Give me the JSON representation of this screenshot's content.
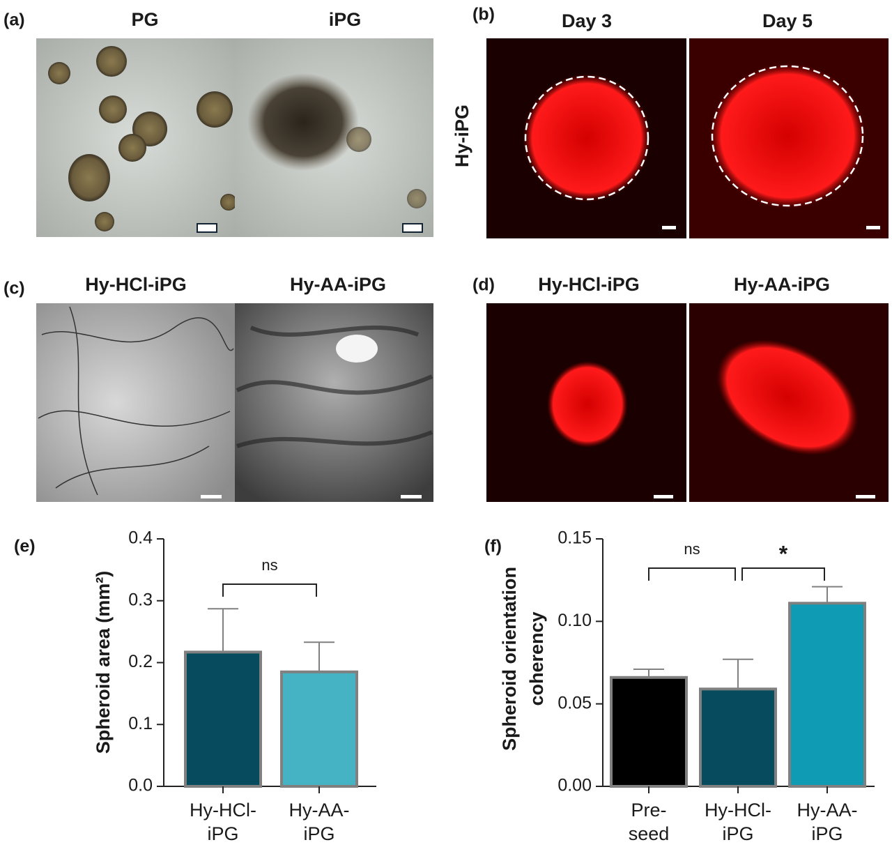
{
  "panels": [
    {
      "label": "(a)",
      "titles": [
        "PG",
        "iPG"
      ]
    },
    {
      "label": "(b)",
      "titles": [
        "Day 3",
        "Day 5"
      ],
      "row_label": "Hy-iPG"
    },
    {
      "label": "(c)",
      "titles": [
        "Hy-HCl-iPG",
        "Hy-AA-iPG"
      ]
    },
    {
      "label": "(d)",
      "titles": [
        "Hy-HCl-iPG",
        "Hy-AA-iPG"
      ]
    }
  ],
  "chart_data": [
    {
      "type": "bar",
      "label": "(e)",
      "ylabel": [
        "Spheroid area (mm²)"
      ],
      "categories": [
        "Hy-HCl-iPG",
        "Hy-AA-iPG"
      ],
      "values": [
        0.217,
        0.185
      ],
      "errors": [
        0.07,
        0.048
      ],
      "colors": [
        "#064b5e",
        "#45b3c4"
      ],
      "ylim": [
        0,
        0.4
      ],
      "yticks": [
        {
          "value": 0,
          "label": "0.0"
        },
        0.1,
        0.2,
        0.3,
        0.4
      ],
      "annotations": [
        "ns"
      ]
    },
    {
      "type": "bar",
      "label": "(f)",
      "ylabel": [
        "Spheroid orientation",
        "coherency"
      ],
      "categories": [
        "Pre-seed",
        "Hy-HCl-iPG",
        "Hy-AA-iPG"
      ],
      "values": [
        0.066,
        0.059,
        0.111
      ],
      "errors": [
        0.005,
        0.018,
        0.01
      ],
      "colors": [
        "#000000",
        "#064b5e",
        "#109bb5"
      ],
      "ylim": [
        0,
        0.15
      ],
      "yticks": [
        {
          "value": 0,
          "label": "0.00"
        },
        0.05,
        {
          "value": 0.1,
          "label": "0.10"
        },
        0.15
      ],
      "annotations": [
        "ns",
        "*"
      ]
    }
  ]
}
